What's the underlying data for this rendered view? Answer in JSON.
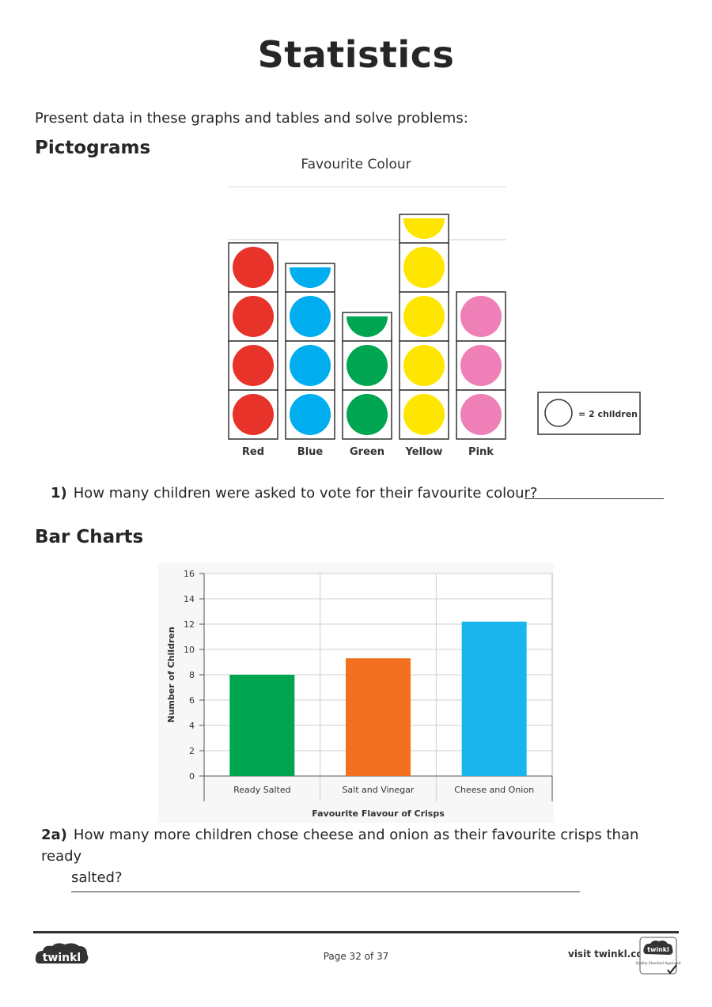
{
  "page": {
    "title": "Statistics",
    "intro": "Present data in these graphs and tables and solve problems:"
  },
  "pictogram": {
    "heading": "Pictograms",
    "title": "Favourite Colour",
    "key_label": "= 2 children",
    "symbol_value": 2,
    "categories": [
      {
        "label": "Red",
        "symbols": 4,
        "color": "#e8332a"
      },
      {
        "label": "Blue",
        "symbols": 3.5,
        "color": "#00aeef"
      },
      {
        "label": "Green",
        "symbols": 2.5,
        "color": "#00a551"
      },
      {
        "label": "Yellow",
        "symbols": 4.5,
        "color": "#ffe600"
      },
      {
        "label": "Pink",
        "symbols": 3,
        "color": "#ef7fb7"
      }
    ]
  },
  "question1": {
    "number": "1)",
    "text": "How many children were asked to vote for their favourite colour?"
  },
  "barchart": {
    "heading": "Bar Charts"
  },
  "chart_data": {
    "type": "bar",
    "categories": [
      "Ready Salted",
      "Salt and Vinegar",
      "Cheese and Onion"
    ],
    "values": [
      8,
      9.3,
      12.2
    ],
    "colors": [
      "#00a551",
      "#f37021",
      "#1bb5ee"
    ],
    "xlabel": "Favourite Flavour of Crisps",
    "ylabel": "Number of Children",
    "ylim": [
      0,
      16
    ],
    "yticks": [
      0,
      2,
      4,
      6,
      8,
      10,
      12,
      14,
      16
    ],
    "grid": true
  },
  "question2a": {
    "number": "2a)",
    "text_line1": "How many more children chose cheese and onion as their favourite crisps than ready",
    "text_line2": "salted?"
  },
  "footer": {
    "logo_text": "twinkl",
    "page_label": "Page 32 of 37",
    "visit": "visit twinkl.com",
    "badge_text": "twinkl",
    "badge_caption": "Quality Standard Approved"
  }
}
